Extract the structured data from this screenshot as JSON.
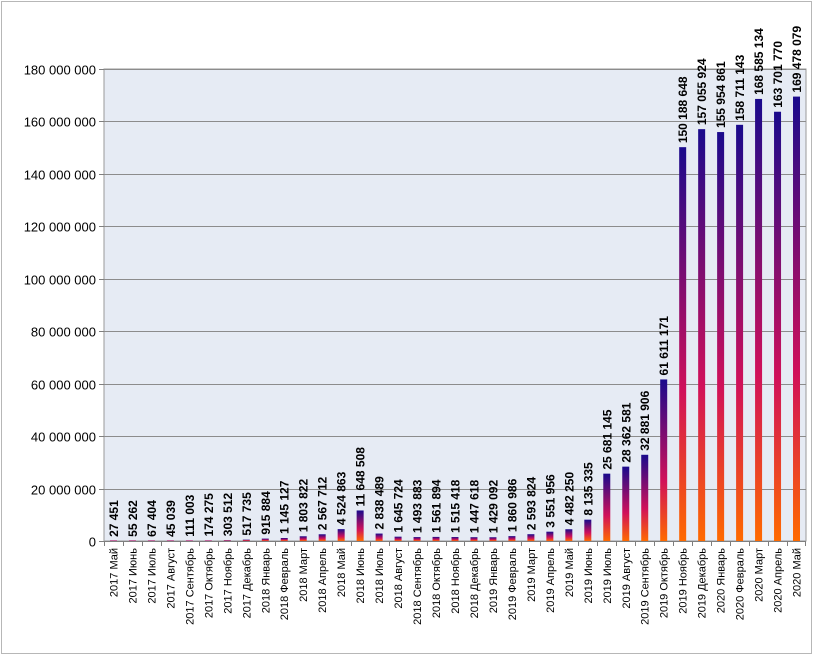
{
  "chart_data": {
    "type": "bar",
    "title": "",
    "xlabel": "",
    "ylabel": "",
    "ylim": [
      0,
      180000000
    ],
    "y_ticks": [
      0,
      20000000,
      40000000,
      60000000,
      80000000,
      100000000,
      120000000,
      140000000,
      160000000,
      180000000
    ],
    "y_tick_labels": [
      "0",
      "20 000 000",
      "40 000 000",
      "60 000 000",
      "80 000 000",
      "100 000 000",
      "120 000 000",
      "140 000 000",
      "160 000 000",
      "180 000 000"
    ],
    "grid": "horizontal",
    "legend": "none",
    "plot_background": "#e6ebf4",
    "bar_gradient": [
      "#1a0a8c",
      "#d0105a",
      "#ff6a00"
    ],
    "categories": [
      "2017 Май",
      "2017 Июнь",
      "2017 Июль",
      "2017 Август",
      "2017 Сентябрь",
      "2017 Октябрь",
      "2017 Ноябрь",
      "2017 Декабрь",
      "2018 Январь",
      "2018 Февраль",
      "2018 Март",
      "2018 Апрель",
      "2018 Май",
      "2018 Июнь",
      "2018 Июль",
      "2018 Август",
      "2018 Сентябрь",
      "2018 Октябрь",
      "2018 Ноябрь",
      "2018 Декабрь",
      "2019 Январь",
      "2019 Февраль",
      "2019 Март",
      "2019 Апрель",
      "2019 Май",
      "2019 Июнь",
      "2019 Июль",
      "2019 Август",
      "2019 Сентябрь",
      "2019 Октябрь",
      "2019 Ноябрь",
      "2019 Декабрь",
      "2020 Январь",
      "2020 Февраль",
      "2020 Март",
      "2020 Апрель",
      "2020 Май"
    ],
    "values": [
      27451,
      55262,
      67404,
      45039,
      111003,
      174275,
      303512,
      517735,
      915884,
      1145127,
      1803822,
      2567712,
      4524863,
      11648508,
      2838489,
      1645724,
      1493883,
      1561894,
      1515418,
      1447618,
      1429092,
      1860986,
      2593824,
      3551956,
      4482250,
      8135335,
      25681145,
      28362581,
      32881906,
      61611171,
      150188648,
      157055924,
      155954861,
      158711143,
      168585134,
      163701770,
      169478079
    ],
    "data_labels": [
      "27 451",
      "55 262",
      "67 404",
      "45 039",
      "111 003",
      "174 275",
      "303 512",
      "517 735",
      "915 884",
      "1 145 127",
      "1 803 822",
      "2 567 712",
      "4 524 863",
      "11 648 508",
      "2 838 489",
      "1 645 724",
      "1 493 883",
      "1 561 894",
      "1 515 418",
      "1 447 618",
      "1 429 092",
      "1 860 986",
      "2 593 824",
      "3 551 956",
      "4 482 250",
      "8 135 335",
      "25 681 145",
      "28 362 581",
      "32 881 906",
      "61 611 171",
      "150 188 648",
      "157 055 924",
      "155 954 861",
      "158 711 143",
      "168 585 134",
      "163 701 770",
      "169 478 079"
    ]
  }
}
